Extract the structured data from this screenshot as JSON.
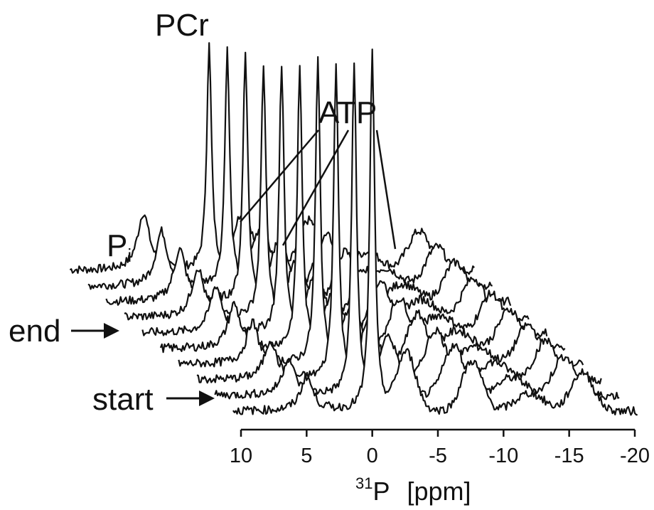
{
  "chart_data": {
    "type": "line",
    "style": "stacked-waterfall",
    "x_axis": {
      "label_superscript": "31",
      "label_main": "P",
      "label_unit": "[ppm]",
      "range": [
        10,
        -20
      ],
      "ticks": [
        "10",
        "5",
        "0",
        "-5",
        "-10",
        "-15",
        "-20"
      ],
      "tick_values": [
        10,
        5,
        0,
        -5,
        -10,
        -15,
        -20
      ],
      "reversed": true
    },
    "peaks": [
      {
        "label": "PCr",
        "position_ppm": 0,
        "relative_height": 1.0
      },
      {
        "label": "P",
        "label_subscript": "i",
        "position_ppm": 5,
        "relative_height": 0.14
      },
      {
        "label": "ATP",
        "position_ppm": -2.5,
        "relative_height": 0.18
      },
      {
        "label": "ATP",
        "position_ppm": -7.5,
        "relative_height": 0.2
      },
      {
        "label": "ATP",
        "position_ppm": -16,
        "relative_height": 0.14
      }
    ],
    "series_count": 10,
    "series_order": [
      "start",
      "end"
    ],
    "pcr_relative_heights_start_to_end": [
      1.0,
      0.92,
      0.88,
      0.84,
      0.78,
      0.74,
      0.7,
      0.69,
      0.65,
      0.62
    ],
    "annotations": [
      {
        "text": "start",
        "arrow": "right"
      },
      {
        "text": "end",
        "arrow": "right"
      }
    ],
    "grid": false,
    "color": "#111111"
  }
}
